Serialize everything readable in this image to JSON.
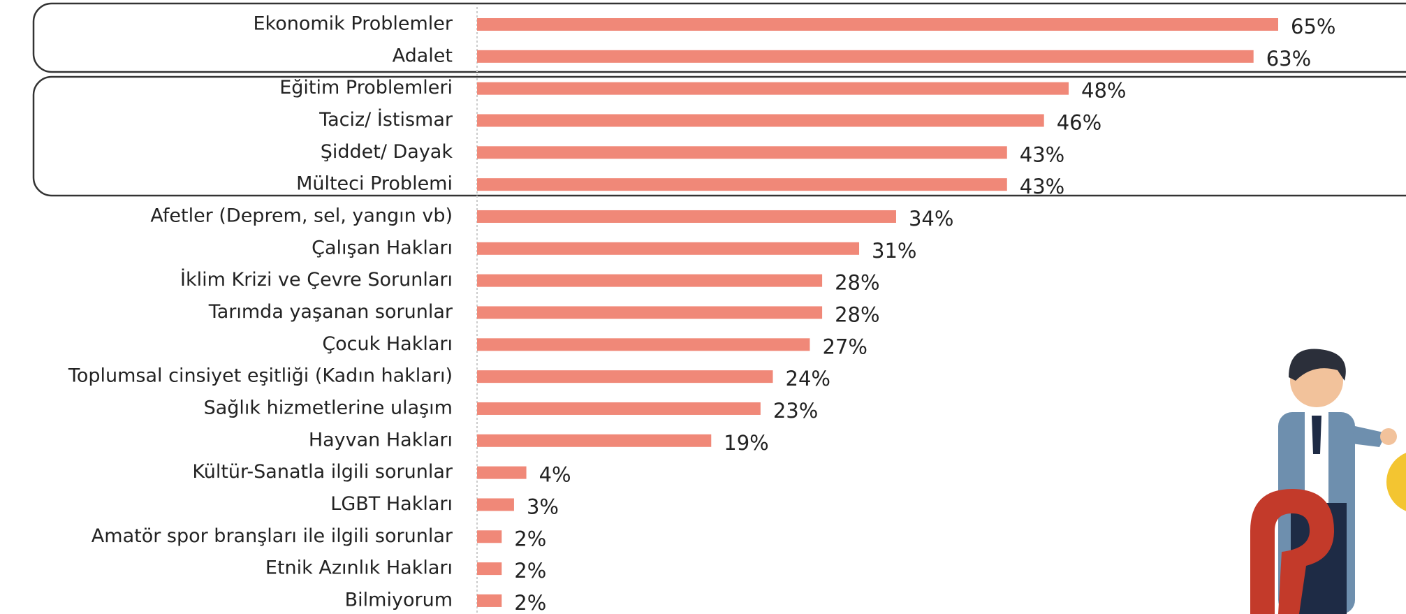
{
  "chart_data": {
    "type": "barh",
    "color": "#f08878",
    "categories": [
      "Ekonomik Problemler",
      "Adalet",
      "Eğitim Problemleri",
      "Taciz/ İstismar",
      "Şiddet/ Dayak",
      "Mülteci Problemi",
      "Afetler (Deprem, sel, yangın vb)",
      "Çalışan Hakları",
      "İklim Krizi ve Çevre Sorunları",
      "Tarımda yaşanan sorunlar",
      "Çocuk Hakları",
      "Toplumsal cinsiyet eşitliği (Kadın hakları)",
      "Sağlık hizmetlerine ulaşım",
      "Hayvan Hakları",
      "Kültür-Sanatla ilgili sorunlar",
      "LGBT Hakları",
      "Amatör spor branşları ile ilgili sorunlar",
      "Etnik Azınlık Hakları",
      "Bilmiyorum"
    ],
    "values": [
      65,
      63,
      48,
      46,
      43,
      43,
      34,
      31,
      28,
      28,
      27,
      24,
      23,
      19,
      4,
      3,
      2,
      2,
      2
    ],
    "value_labels": [
      "65%",
      "63%",
      "48%",
      "46%",
      "43%",
      "43%",
      "34%",
      "31%",
      "28%",
      "28%",
      "27%",
      "24%",
      "23%",
      "19%",
      "4%",
      "3%",
      "2%",
      "2%",
      "2%"
    ]
  }
}
